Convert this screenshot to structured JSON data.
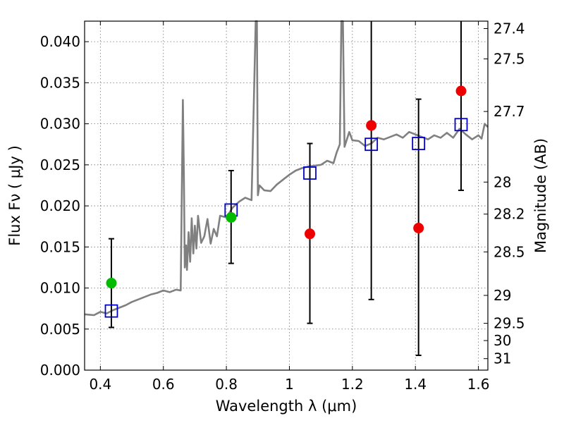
{
  "chart_data": {
    "type": "scatter",
    "xlabel": "Wavelength  λ (μm)",
    "ylabel": "Flux  F_ν  ( μJy )",
    "ylabel_right": "Magnitude (AB)",
    "xlim": [
      0.35,
      1.63
    ],
    "ylim": [
      0.0,
      0.0425
    ],
    "grid": true,
    "x_ticks": [
      0.4,
      0.6,
      0.8,
      1.0,
      1.2,
      1.4,
      1.6
    ],
    "x_tick_labels": [
      "0.4",
      "0.6",
      "0.8",
      "1",
      "1.2",
      "1.4",
      "1.6"
    ],
    "y_ticks": [
      0.0,
      0.005,
      0.01,
      0.015,
      0.02,
      0.025,
      0.03,
      0.035,
      0.04
    ],
    "y_tick_labels": [
      "0.000",
      "0.005",
      "0.010",
      "0.015",
      "0.020",
      "0.025",
      "0.030",
      "0.035",
      "0.040"
    ],
    "right_ticks": [
      {
        "flux": 0.0416,
        "label": "27.4"
      },
      {
        "flux": 0.0379,
        "label": "27.5"
      },
      {
        "flux": 0.0315,
        "label": "27.7"
      },
      {
        "flux": 0.0229,
        "label": "28"
      },
      {
        "flux": 0.019,
        "label": "28.2"
      },
      {
        "flux": 0.0144,
        "label": "28.5"
      },
      {
        "flux": 0.0091,
        "label": "29"
      },
      {
        "flux": 0.0057,
        "label": "29.5"
      },
      {
        "flux": 0.0036,
        "label": "30"
      },
      {
        "flux": 0.0014,
        "label": "31"
      }
    ],
    "series": [
      {
        "kind": "spectrum",
        "color": "#808080",
        "x": [
          0.35,
          0.38,
          0.4,
          0.42,
          0.44,
          0.46,
          0.48,
          0.5,
          0.52,
          0.54,
          0.56,
          0.58,
          0.6,
          0.62,
          0.64,
          0.655,
          0.662,
          0.665,
          0.668,
          0.672,
          0.675,
          0.68,
          0.685,
          0.69,
          0.695,
          0.7,
          0.705,
          0.71,
          0.72,
          0.73,
          0.74,
          0.75,
          0.76,
          0.77,
          0.78,
          0.8,
          0.82,
          0.84,
          0.86,
          0.88,
          0.893,
          0.897,
          0.9,
          0.905,
          0.92,
          0.94,
          0.96,
          0.98,
          1.0,
          1.02,
          1.04,
          1.06,
          1.08,
          1.1,
          1.12,
          1.14,
          1.15,
          1.16,
          1.165,
          1.17,
          1.175,
          1.18,
          1.19,
          1.2,
          1.22,
          1.24,
          1.26,
          1.28,
          1.3,
          1.32,
          1.34,
          1.36,
          1.38,
          1.4,
          1.42,
          1.44,
          1.46,
          1.48,
          1.5,
          1.52,
          1.54,
          1.56,
          1.58,
          1.6,
          1.61,
          1.62,
          1.63
        ],
        "y": [
          0.0068,
          0.0067,
          0.0071,
          0.0069,
          0.0073,
          0.0076,
          0.0079,
          0.0083,
          0.0086,
          0.0089,
          0.0092,
          0.0094,
          0.0097,
          0.0095,
          0.0098,
          0.0097,
          0.0329,
          0.024,
          0.0125,
          0.0152,
          0.0122,
          0.0168,
          0.0132,
          0.0185,
          0.0142,
          0.0176,
          0.0148,
          0.0188,
          0.0155,
          0.0163,
          0.0184,
          0.0154,
          0.0172,
          0.0163,
          0.0188,
          0.0186,
          0.0198,
          0.0205,
          0.021,
          0.0207,
          0.0425,
          0.0425,
          0.0213,
          0.0225,
          0.0219,
          0.0218,
          0.0226,
          0.0232,
          0.0238,
          0.0243,
          0.0246,
          0.0248,
          0.0249,
          0.025,
          0.0255,
          0.0252,
          0.0265,
          0.0275,
          0.0425,
          0.0425,
          0.0272,
          0.0278,
          0.029,
          0.028,
          0.0279,
          0.0273,
          0.0276,
          0.0283,
          0.0281,
          0.0284,
          0.0287,
          0.0283,
          0.029,
          0.0287,
          0.0284,
          0.0281,
          0.0286,
          0.0283,
          0.0289,
          0.0283,
          0.0294,
          0.0287,
          0.0281,
          0.0286,
          0.0282,
          0.03,
          0.0296
        ]
      },
      {
        "kind": "model-photometry",
        "marker": "square",
        "color": "#0000cc",
        "x": [
          0.435,
          0.815,
          1.065,
          1.26,
          1.41,
          1.545
        ],
        "y": [
          0.0072,
          0.0195,
          0.024,
          0.0275,
          0.0276,
          0.0299
        ]
      },
      {
        "kind": "detections",
        "marker": "circle",
        "color": "#00bb00",
        "x": [
          0.435,
          0.815
        ],
        "y": [
          0.0106,
          0.0186
        ]
      },
      {
        "kind": "low-significance",
        "marker": "circle",
        "color": "#ee0000",
        "x": [
          1.065,
          1.26,
          1.41,
          1.545
        ],
        "y": [
          0.0166,
          0.0298,
          0.0173,
          0.034
        ]
      },
      {
        "kind": "error-bars",
        "color": "#000000",
        "x": [
          0.435,
          0.815,
          1.065,
          1.26,
          1.41,
          1.545
        ],
        "low": [
          0.0052,
          0.013,
          0.0057,
          0.0086,
          0.0018,
          0.0219
        ],
        "high": [
          0.016,
          0.0243,
          0.0276,
          0.0425,
          0.033,
          0.0425
        ]
      }
    ]
  }
}
